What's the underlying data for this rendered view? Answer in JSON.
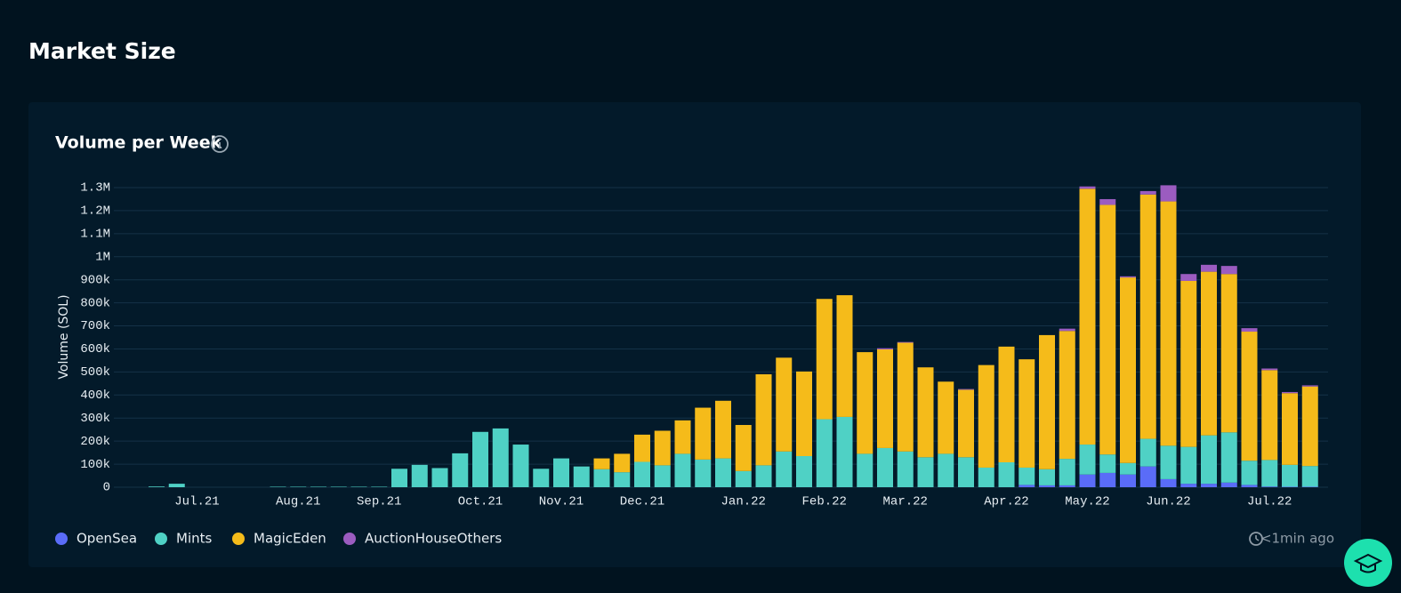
{
  "page_title": "Market Size",
  "updated": "<1min ago",
  "chart_data": {
    "type": "bar",
    "stacked": true,
    "title": "Volume per Week",
    "y_label": "Volume (SOL)",
    "grid": true,
    "categories": [
      null,
      null,
      "Jul.21",
      null,
      null,
      null,
      null,
      "Aug.21",
      null,
      null,
      null,
      "Sep.21",
      null,
      null,
      null,
      null,
      "Oct.21",
      null,
      null,
      null,
      "Nov.21",
      null,
      null,
      null,
      "Dec.21",
      null,
      null,
      null,
      null,
      "Jan.22",
      null,
      null,
      null,
      "Feb.22",
      null,
      null,
      null,
      "Mar.22",
      null,
      null,
      null,
      null,
      "Apr.22",
      null,
      null,
      null,
      "May.22",
      null,
      null,
      null,
      "Jun.22",
      null,
      null,
      null,
      null,
      "Jul.22",
      null,
      null
    ],
    "ylim": [
      0,
      1300000
    ],
    "yticks": [
      0,
      {
        "value": 100000,
        "label": "100k"
      },
      {
        "value": 200000,
        "label": "200k"
      },
      {
        "value": 300000,
        "label": "300k"
      },
      {
        "value": 400000,
        "label": "400k"
      },
      {
        "value": 500000,
        "label": "500k"
      },
      {
        "value": 600000,
        "label": "600k"
      },
      {
        "value": 700000,
        "label": "700k"
      },
      {
        "value": 800000,
        "label": "800k"
      },
      {
        "value": 900000,
        "label": "900k"
      },
      {
        "value": 1000000,
        "label": "1M"
      },
      {
        "value": 1100000,
        "label": "1.1M"
      },
      {
        "value": 1200000,
        "label": "1.2M"
      },
      {
        "value": 1300000,
        "label": "1.3M"
      }
    ],
    "series": [
      {
        "name": "OpenSea",
        "color": "#5a6cf8",
        "values": [
          0,
          0,
          0,
          0,
          0,
          0,
          0,
          0,
          0,
          0,
          0,
          0,
          0,
          0,
          0,
          0,
          0,
          0,
          0,
          0,
          0,
          0,
          0,
          0,
          0,
          0,
          0,
          0,
          0,
          0,
          0,
          0,
          0,
          0,
          0,
          0,
          0,
          0,
          0,
          0,
          0,
          0,
          0,
          10000,
          8000,
          8000,
          55000,
          62000,
          55000,
          90000,
          35000,
          15000,
          15000,
          20000,
          10000,
          3000,
          2000,
          2000
        ]
      },
      {
        "name": "Mints",
        "color": "#4fd1c5",
        "values": [
          3000,
          15000,
          0,
          0,
          0,
          0,
          2000,
          2000,
          2000,
          2000,
          2000,
          2000,
          80000,
          97000,
          83000,
          147000,
          240000,
          255000,
          185000,
          80000,
          125000,
          90000,
          78000,
          65000,
          110000,
          95000,
          145000,
          120000,
          125000,
          70000,
          95000,
          155000,
          135000,
          295000,
          305000,
          145000,
          170000,
          155000,
          130000,
          145000,
          130000,
          85000,
          108000,
          75000,
          70000,
          115000,
          130000,
          80000,
          50000,
          120000,
          145000,
          160000,
          210000,
          218000,
          105000,
          115000,
          95000,
          90000
        ]
      },
      {
        "name": "MagicEden",
        "color": "#f5bb1a",
        "values": [
          0,
          0,
          0,
          0,
          0,
          0,
          0,
          0,
          0,
          0,
          0,
          0,
          0,
          0,
          0,
          0,
          0,
          0,
          0,
          0,
          0,
          0,
          47000,
          80000,
          118000,
          150000,
          145000,
          225000,
          250000,
          200000,
          395000,
          407000,
          367000,
          522000,
          528000,
          441000,
          428000,
          472000,
          390000,
          313000,
          293000,
          445000,
          502000,
          470000,
          582000,
          555000,
          1110000,
          1083000,
          805000,
          1060000,
          1060000,
          720000,
          710000,
          687000,
          560000,
          390000,
          311000,
          345000
        ]
      },
      {
        "name": "AuctionHouseOthers",
        "color": "#9b5cc0",
        "values": [
          0,
          0,
          0,
          0,
          0,
          0,
          0,
          0,
          0,
          0,
          0,
          0,
          0,
          0,
          0,
          0,
          0,
          0,
          0,
          0,
          0,
          0,
          0,
          0,
          0,
          0,
          0,
          0,
          0,
          0,
          0,
          0,
          0,
          0,
          0,
          0,
          5000,
          3000,
          0,
          0,
          3000,
          0,
          0,
          0,
          0,
          10000,
          10000,
          25000,
          5000,
          15000,
          70000,
          30000,
          30000,
          35000,
          15000,
          7000,
          5000,
          5000
        ]
      }
    ]
  }
}
